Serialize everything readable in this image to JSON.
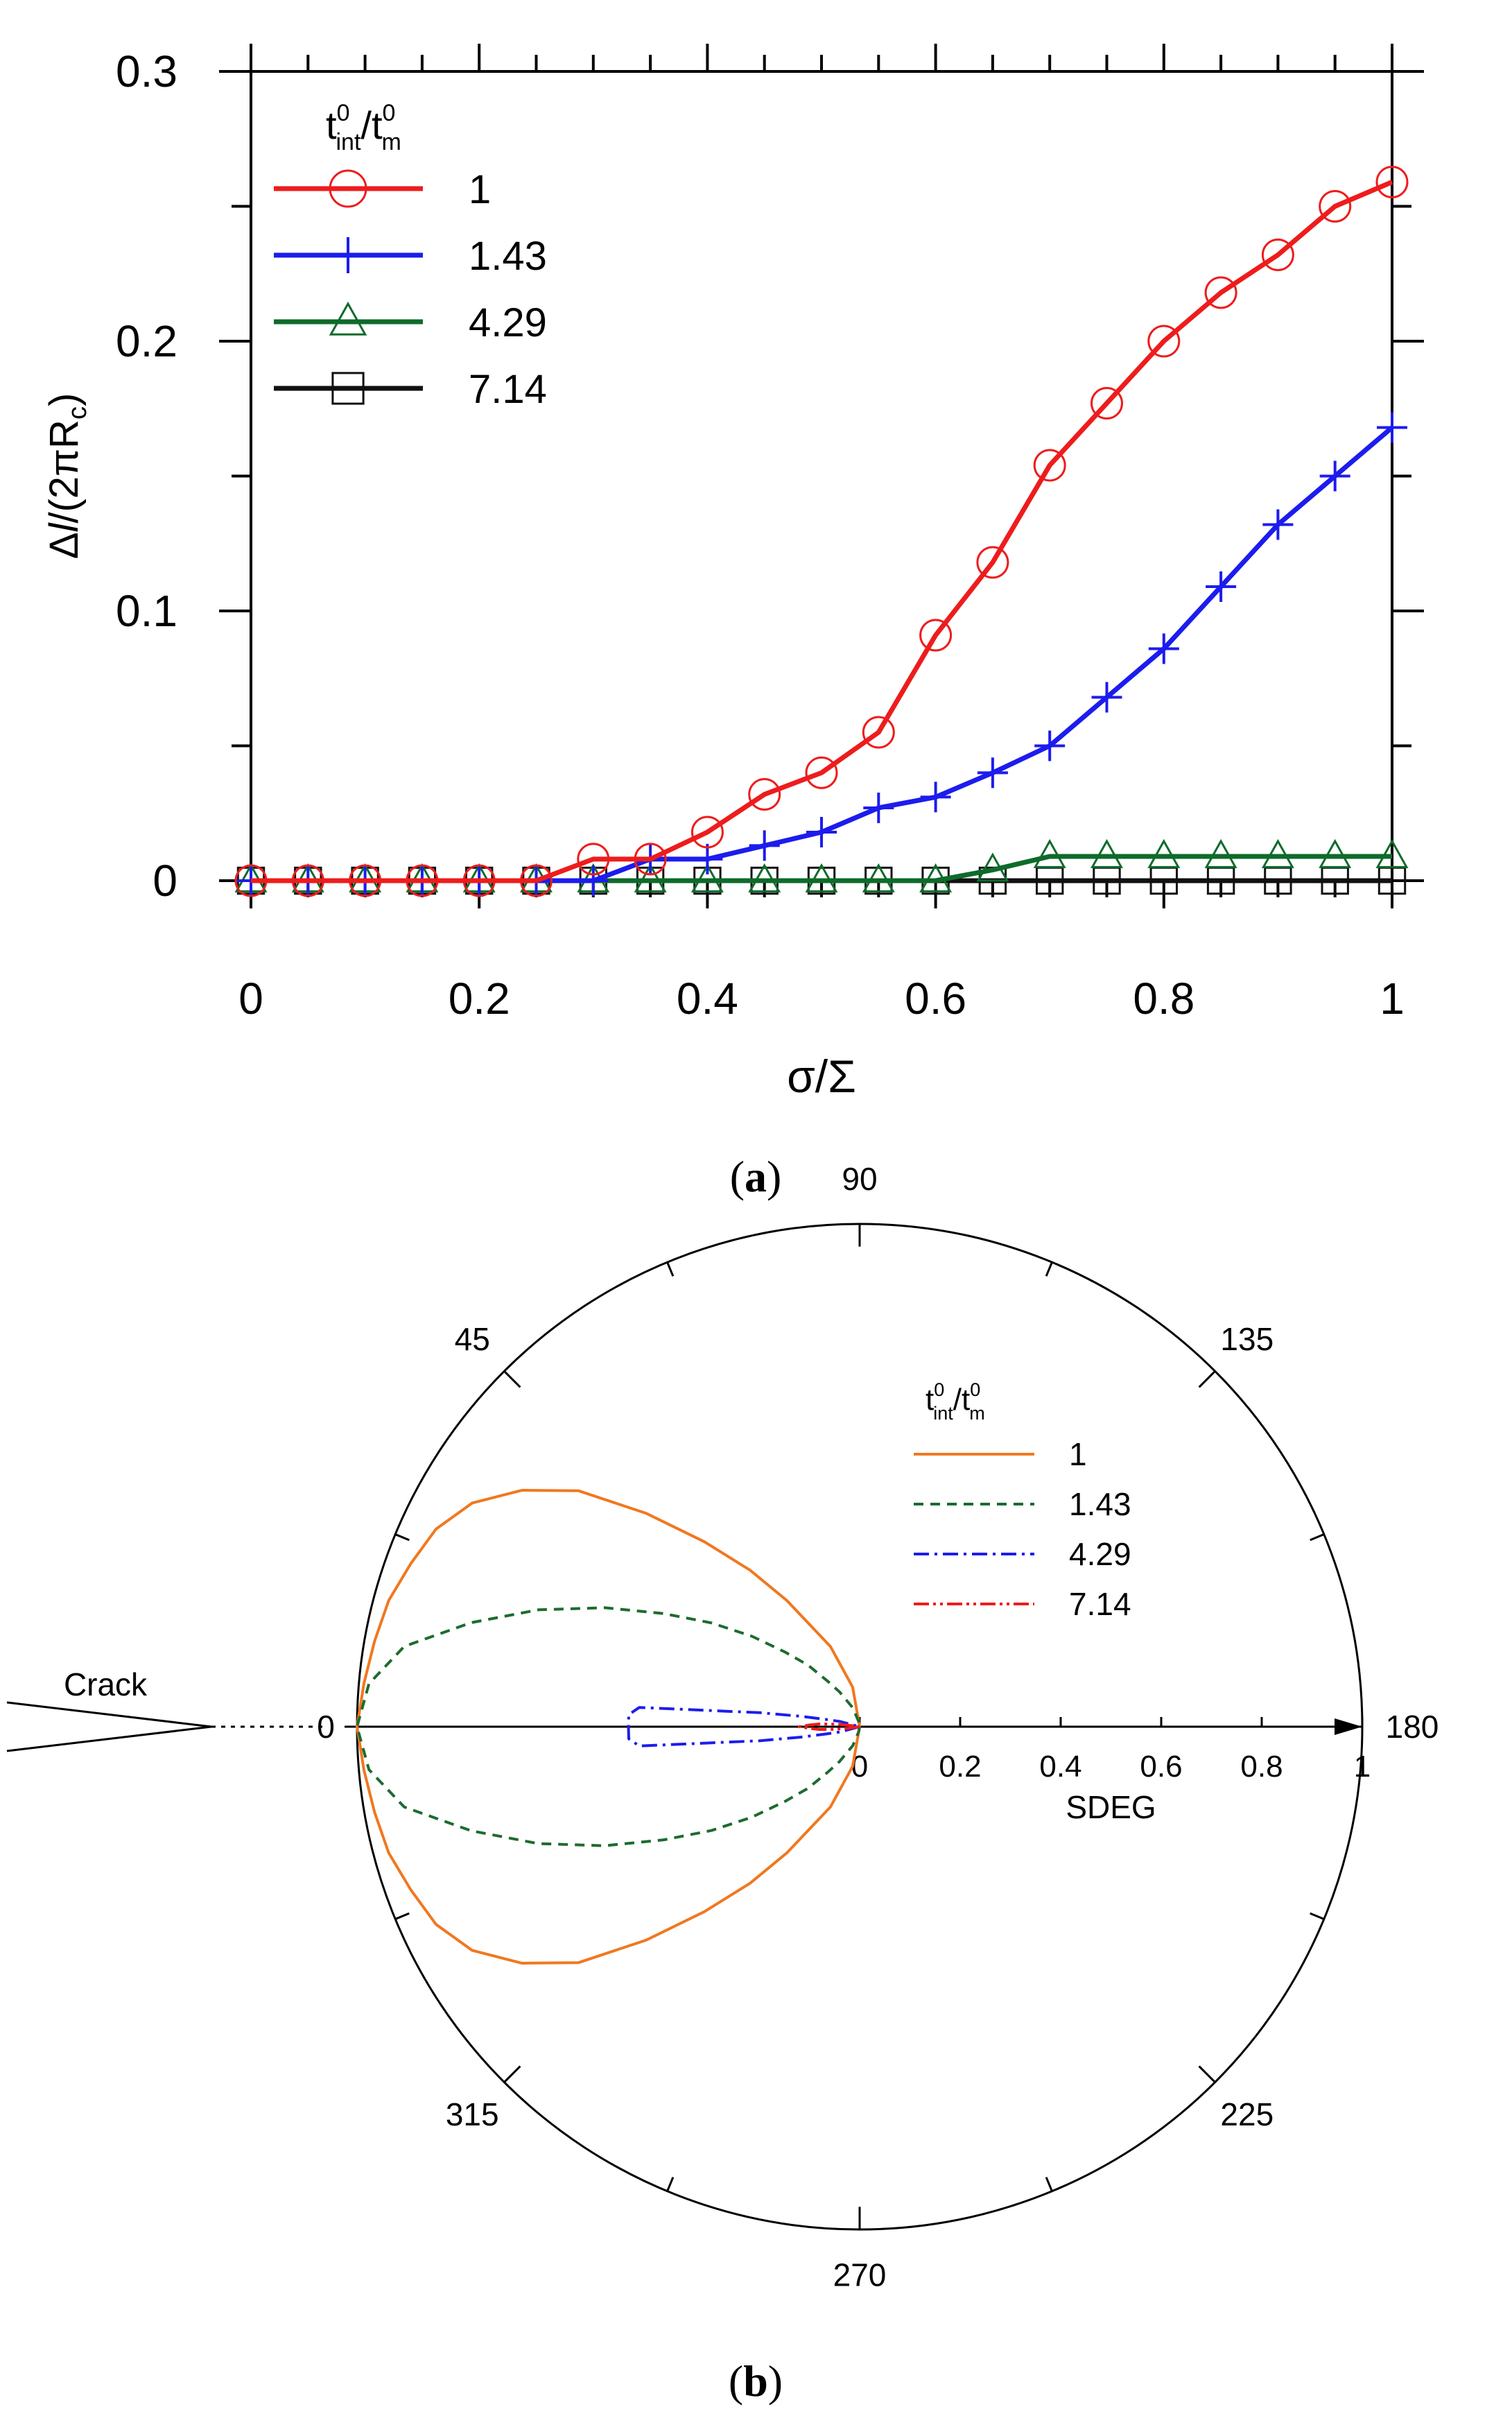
{
  "chart_data": [
    {
      "type": "line",
      "panel_label": "(a)",
      "panel_label_letter": "a",
      "xlabel": "σ/Σ",
      "ylabel": "Δl/(2πRc)",
      "ylabel_parts": [
        "Δ",
        "l",
        "/(2πR",
        "c",
        ")"
      ],
      "xlim": [
        0,
        1
      ],
      "ylim": [
        0,
        0.3
      ],
      "xticks": [
        "0",
        "0.2",
        "0.4",
        "0.6",
        "0.8",
        "1"
      ],
      "xtick_values": [
        0,
        0.2,
        0.4,
        0.6,
        0.8,
        1
      ],
      "yticks": [
        "0",
        "0.1",
        "0.2",
        "0.3"
      ],
      "ytick_values": [
        0,
        0.1,
        0.2,
        0.3
      ],
      "legend_title": {
        "t": "t",
        "sup": "0",
        "sub": "int",
        "slash": "/t",
        "sup2": "0",
        "sub2": "m"
      },
      "legend_position": "top-left",
      "x": [
        0,
        0.05,
        0.1,
        0.15,
        0.2,
        0.25,
        0.3,
        0.35,
        0.4,
        0.45,
        0.5,
        0.55,
        0.6,
        0.65,
        0.7,
        0.75,
        0.8,
        0.85,
        0.9,
        0.95,
        1.0
      ],
      "series": [
        {
          "name": "1",
          "color": "#ee1c1c",
          "marker": "circle",
          "values": [
            0,
            0,
            0,
            0,
            0,
            0,
            0.008,
            0.008,
            0.018,
            0.032,
            0.04,
            0.055,
            0.091,
            0.118,
            0.154,
            0.177,
            0.2,
            0.218,
            0.232,
            0.25,
            0.259
          ]
        },
        {
          "name": "1.43",
          "color": "#1c1cee",
          "marker": "plus",
          "values": [
            0,
            0,
            0,
            0,
            0,
            0,
            0,
            0.008,
            0.008,
            0.013,
            0.018,
            0.027,
            0.031,
            0.04,
            0.05,
            0.068,
            0.086,
            0.109,
            0.132,
            0.15,
            0.168
          ]
        },
        {
          "name": "4.29",
          "color": "#0e6b2a",
          "marker": "triangle",
          "values": [
            0,
            0,
            0,
            0,
            0,
            0,
            0,
            0,
            0,
            0,
            0,
            0,
            0,
            0.004,
            0.009,
            0.009,
            0.009,
            0.009,
            0.009,
            0.009,
            0.009
          ]
        },
        {
          "name": "7.14",
          "color": "#111111",
          "marker": "square",
          "values": [
            0,
            0,
            0,
            0,
            0,
            0,
            0,
            0,
            0,
            0,
            0,
            0,
            0,
            0,
            0,
            0,
            0,
            0,
            0,
            0,
            0
          ]
        }
      ]
    },
    {
      "type": "polar",
      "panel_label": "(b)",
      "panel_label_letter": "b",
      "radial_label": "SDEG",
      "radial_ticks": [
        "0",
        "0.2",
        "0.4",
        "0.6",
        "0.8",
        "1"
      ],
      "radial_tick_values": [
        0,
        0.2,
        0.4,
        0.6,
        0.8,
        1
      ],
      "angle_labels": [
        "0",
        "45",
        "90",
        "135",
        "180",
        "225",
        "270",
        "315"
      ],
      "angle_label_values": [
        0,
        45,
        90,
        135,
        180,
        225,
        270,
        315
      ],
      "annotation": "Crack",
      "legend_title": {
        "t": "t",
        "sup": "0",
        "sub": "int",
        "slash": "/t",
        "sup2": "0",
        "sub2": "m"
      },
      "legend_position": "top-right",
      "series": [
        {
          "name": "1",
          "color": "#f07820",
          "dash": "solid",
          "angles": [
            0,
            5,
            10,
            15,
            20,
            25,
            30,
            35,
            40,
            45,
            50,
            55,
            60,
            70,
            80,
            90
          ],
          "radii": [
            1.0,
            0.99,
            0.98,
            0.97,
            0.95,
            0.93,
            0.89,
            0.82,
            0.73,
            0.6,
            0.48,
            0.38,
            0.29,
            0.17,
            0.08,
            0.0
          ]
        },
        {
          "name": "1.43",
          "color": "#1d6b2f",
          "dash": "14,10",
          "angles": [
            0,
            5,
            10,
            15,
            20,
            25,
            30,
            35,
            40,
            45,
            50,
            55,
            60,
            70,
            80,
            90
          ],
          "radii": [
            1.0,
            0.98,
            0.92,
            0.8,
            0.68,
            0.56,
            0.45,
            0.36,
            0.28,
            0.21,
            0.16,
            0.11,
            0.08,
            0.04,
            0.01,
            0.0
          ]
        },
        {
          "name": "4.29",
          "color": "#1c1cee",
          "dash": "22,8,4,8",
          "angles": [
            0,
            3,
            5,
            8,
            10,
            12,
            15,
            20
          ],
          "radii": [
            0.46,
            0.46,
            0.44,
            0.2,
            0.12,
            0.07,
            0.04,
            0.0
          ]
        },
        {
          "name": "7.14",
          "color": "#ee1c1c",
          "dash": "22,6,4,6,4,6",
          "angles": [
            0,
            2,
            4,
            6,
            8,
            10
          ],
          "radii": [
            0.12,
            0.1,
            0.08,
            0.05,
            0.02,
            0.0
          ]
        }
      ]
    }
  ]
}
